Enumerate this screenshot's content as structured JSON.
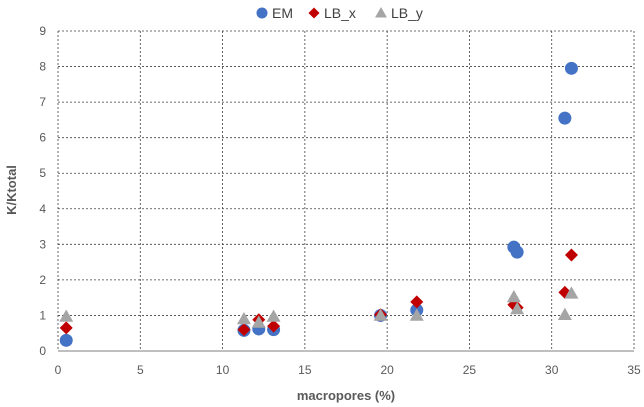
{
  "chart_data": {
    "type": "scatter",
    "title": "",
    "xlabel": "macropores (%)",
    "ylabel": "K/Ktotal",
    "xlim": [
      0,
      35
    ],
    "ylim": [
      0,
      9
    ],
    "xticks": [
      0,
      5,
      10,
      15,
      20,
      25,
      30,
      35
    ],
    "yticks": [
      0,
      1,
      2,
      3,
      4,
      5,
      6,
      7,
      8,
      9
    ],
    "grid": true,
    "legend_position": "top",
    "series": [
      {
        "name": "EM",
        "marker": "circle",
        "color": "#4472C4",
        "points": [
          [
            0.5,
            0.3
          ],
          [
            11.3,
            0.58
          ],
          [
            12.2,
            0.62
          ],
          [
            13.1,
            0.6
          ],
          [
            19.6,
            1.0
          ],
          [
            21.8,
            1.15
          ],
          [
            27.7,
            2.92
          ],
          [
            27.9,
            2.78
          ],
          [
            30.8,
            6.55
          ],
          [
            31.2,
            7.95
          ]
        ]
      },
      {
        "name": "LB_x",
        "marker": "diamond",
        "color": "#C00000",
        "points": [
          [
            0.5,
            0.65
          ],
          [
            11.3,
            0.6
          ],
          [
            12.2,
            0.88
          ],
          [
            13.1,
            0.7
          ],
          [
            19.6,
            1.02
          ],
          [
            21.8,
            1.38
          ],
          [
            27.7,
            1.3
          ],
          [
            27.9,
            1.22
          ],
          [
            30.8,
            1.65
          ],
          [
            31.2,
            2.7
          ]
        ]
      },
      {
        "name": "LB_y",
        "marker": "triangle",
        "color": "#A5A5A5",
        "points": [
          [
            0.5,
            0.97
          ],
          [
            11.3,
            0.9
          ],
          [
            12.2,
            0.8
          ],
          [
            13.1,
            0.97
          ],
          [
            19.6,
            1.0
          ],
          [
            21.8,
            1.0
          ],
          [
            27.7,
            1.52
          ],
          [
            27.9,
            1.18
          ],
          [
            30.8,
            1.02
          ],
          [
            31.2,
            1.62
          ]
        ]
      }
    ]
  }
}
